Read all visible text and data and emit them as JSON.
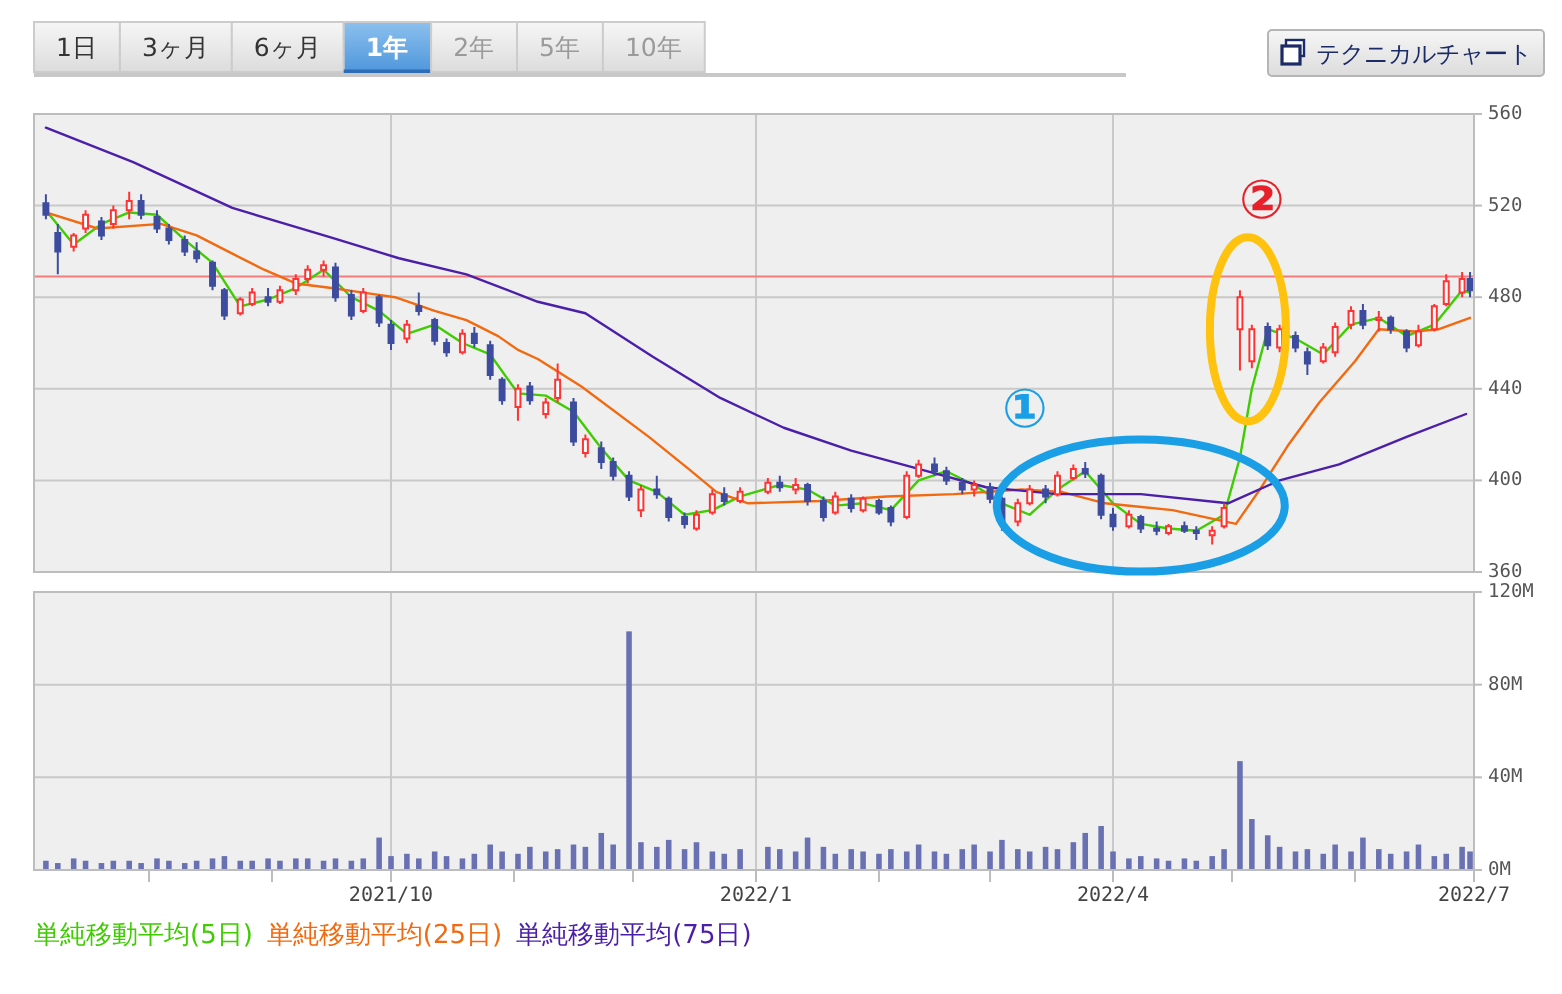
{
  "chart_data": [
    {
      "type": "candlestick",
      "x": [
        "2021-07-06",
        "2021-07-09",
        "2021-07-13",
        "2021-07-16",
        "2021-07-20",
        "2021-07-23",
        "2021-07-27",
        "2021-07-30",
        "2021-08-03",
        "2021-08-06",
        "2021-08-10",
        "2021-08-13",
        "2021-08-17",
        "2021-08-20",
        "2021-08-24",
        "2021-08-27",
        "2021-08-31",
        "2021-09-03",
        "2021-09-07",
        "2021-09-10",
        "2021-09-14",
        "2021-09-17",
        "2021-09-21",
        "2021-09-24",
        "2021-09-28",
        "2021-10-01",
        "2021-10-05",
        "2021-10-08",
        "2021-10-12",
        "2021-10-15",
        "2021-10-19",
        "2021-10-22",
        "2021-10-26",
        "2021-10-29",
        "2021-11-02",
        "2021-11-05",
        "2021-11-09",
        "2021-11-12",
        "2021-11-16",
        "2021-11-19",
        "2021-11-23",
        "2021-11-26",
        "2021-11-30",
        "2021-12-03",
        "2021-12-07",
        "2021-12-10",
        "2021-12-14",
        "2021-12-17",
        "2021-12-21",
        "2021-12-24",
        "2021-12-28",
        "2022-01-04",
        "2022-01-07",
        "2022-01-11",
        "2022-01-14",
        "2022-01-18",
        "2022-01-21",
        "2022-01-25",
        "2022-01-28",
        "2022-02-01",
        "2022-02-04",
        "2022-02-08",
        "2022-02-11",
        "2022-02-15",
        "2022-02-18",
        "2022-02-22",
        "2022-02-25",
        "2022-03-01",
        "2022-03-04",
        "2022-03-08",
        "2022-03-11",
        "2022-03-15",
        "2022-03-18",
        "2022-03-22",
        "2022-03-25",
        "2022-03-29",
        "2022-04-01",
        "2022-04-05",
        "2022-04-08",
        "2022-04-12",
        "2022-04-15",
        "2022-04-19",
        "2022-04-22",
        "2022-04-26",
        "2022-04-29",
        "2022-05-03",
        "2022-05-06",
        "2022-05-10",
        "2022-05-13",
        "2022-05-17",
        "2022-05-20",
        "2022-05-24",
        "2022-05-27",
        "2022-05-31",
        "2022-06-03",
        "2022-06-07",
        "2022-06-10",
        "2022-06-14",
        "2022-06-17",
        "2022-06-21",
        "2022-06-24",
        "2022-06-28",
        "2022-06-30"
      ],
      "ohlc": [
        [
          521,
          525,
          514,
          516
        ],
        [
          508,
          512,
          490,
          500
        ],
        [
          502,
          508,
          500,
          507
        ],
        [
          510,
          518,
          508,
          516
        ],
        [
          513,
          515,
          505,
          507
        ],
        [
          512,
          520,
          510,
          518
        ],
        [
          518,
          526,
          514,
          522
        ],
        [
          522,
          525,
          514,
          516
        ],
        [
          515,
          518,
          508,
          510
        ],
        [
          510,
          512,
          503,
          505
        ],
        [
          505,
          507,
          498,
          500
        ],
        [
          500,
          504,
          495,
          497
        ],
        [
          495,
          496,
          483,
          485
        ],
        [
          483,
          484,
          470,
          472
        ],
        [
          473,
          480,
          472,
          479
        ],
        [
          477,
          484,
          476,
          482
        ],
        [
          480,
          484,
          476,
          478
        ],
        [
          478,
          485,
          477,
          483
        ],
        [
          483,
          490,
          481,
          488
        ],
        [
          488,
          494,
          486,
          492
        ],
        [
          492,
          496,
          489,
          494
        ],
        [
          493,
          495,
          478,
          480
        ],
        [
          481,
          483,
          470,
          472
        ],
        [
          474,
          484,
          473,
          482
        ],
        [
          480,
          481,
          467,
          469
        ],
        [
          468,
          470,
          457,
          460
        ],
        [
          462,
          470,
          460,
          468
        ],
        [
          476,
          482,
          472,
          474
        ],
        [
          470,
          471,
          459,
          461
        ],
        [
          460,
          462,
          454,
          456
        ],
        [
          456,
          466,
          455,
          464
        ],
        [
          464,
          467,
          458,
          460
        ],
        [
          459,
          461,
          444,
          446
        ],
        [
          444,
          445,
          433,
          435
        ],
        [
          432,
          442,
          426,
          440
        ],
        [
          441,
          443,
          433,
          435
        ],
        [
          429,
          436,
          427,
          434
        ],
        [
          436,
          451,
          434,
          444
        ],
        [
          434,
          436,
          415,
          417
        ],
        [
          412,
          420,
          410,
          418
        ],
        [
          414,
          417,
          405,
          408
        ],
        [
          408,
          410,
          400,
          402
        ],
        [
          402,
          404,
          391,
          393
        ],
        [
          387,
          398,
          384,
          396
        ],
        [
          396,
          402,
          392,
          394
        ],
        [
          392,
          393,
          382,
          384
        ],
        [
          384,
          386,
          379,
          381
        ],
        [
          379,
          387,
          378,
          385
        ],
        [
          386,
          396,
          385,
          394
        ],
        [
          394,
          397,
          389,
          391
        ],
        [
          391,
          397,
          390,
          395
        ],
        [
          395,
          401,
          394,
          399
        ],
        [
          399,
          402,
          395,
          397
        ],
        [
          396,
          401,
          394,
          398
        ],
        [
          398,
          399,
          389,
          391
        ],
        [
          391,
          393,
          382,
          384
        ],
        [
          386,
          395,
          385,
          393
        ],
        [
          392,
          394,
          386,
          388
        ],
        [
          387,
          393,
          386,
          392
        ],
        [
          391,
          392,
          385,
          386
        ],
        [
          388,
          389,
          380,
          382
        ],
        [
          384,
          404,
          383,
          402
        ],
        [
          402,
          409,
          401,
          407
        ],
        [
          407,
          410,
          402,
          404
        ],
        [
          404,
          406,
          398,
          400
        ],
        [
          399,
          401,
          394,
          396
        ],
        [
          396,
          400,
          393,
          398
        ],
        [
          397,
          399,
          390,
          392
        ],
        [
          392,
          393,
          378,
          381
        ],
        [
          382,
          392,
          380,
          390
        ],
        [
          390,
          398,
          389,
          396
        ],
        [
          396,
          398,
          390,
          393
        ],
        [
          394,
          404,
          393,
          402
        ],
        [
          401,
          407,
          400,
          405
        ],
        [
          405,
          408,
          401,
          403
        ],
        [
          402,
          403,
          383,
          385
        ],
        [
          385,
          388,
          378,
          380
        ],
        [
          380,
          387,
          379,
          385
        ],
        [
          384,
          385,
          377,
          379
        ],
        [
          379,
          382,
          376,
          378
        ],
        [
          377,
          381,
          376,
          380
        ],
        [
          380,
          382,
          377,
          378
        ],
        [
          378,
          380,
          374,
          377
        ],
        [
          376,
          380,
          372,
          378
        ],
        [
          380,
          390,
          379,
          388
        ],
        [
          466,
          483,
          448,
          480
        ],
        [
          452,
          468,
          449,
          466
        ],
        [
          467,
          469,
          457,
          459
        ],
        [
          458,
          468,
          456,
          466
        ],
        [
          463,
          465,
          456,
          458
        ],
        [
          456,
          458,
          446,
          451
        ],
        [
          452,
          460,
          451,
          458
        ],
        [
          456,
          469,
          454,
          467
        ],
        [
          468,
          476,
          466,
          474
        ],
        [
          474,
          477,
          466,
          468
        ],
        [
          470,
          474,
          465,
          471
        ],
        [
          471,
          472,
          464,
          466
        ],
        [
          465,
          466,
          456,
          458
        ],
        [
          459,
          468,
          458,
          465
        ],
        [
          466,
          477,
          465,
          476
        ],
        [
          477,
          490,
          476,
          487
        ],
        [
          482,
          491,
          480,
          488
        ],
        [
          488,
          491,
          480,
          483
        ]
      ],
      "colors": [
        "#3d4c9e",
        "#3d4c9e",
        "#ff3333",
        "#ff3333",
        "#3d4c9e",
        "#ff3333",
        "#ff3333",
        "#3d4c9e",
        "#3d4c9e",
        "#3d4c9e",
        "#3d4c9e",
        "#3d4c9e",
        "#3d4c9e",
        "#3d4c9e",
        "#ff3333",
        "#ff3333",
        "#3d4c9e",
        "#ff3333",
        "#ff3333",
        "#ff3333",
        "#ff3333",
        "#3d4c9e",
        "#3d4c9e",
        "#ff3333",
        "#3d4c9e",
        "#3d4c9e",
        "#ff3333",
        "#3d4c9e",
        "#3d4c9e",
        "#3d4c9e",
        "#ff3333",
        "#3d4c9e",
        "#3d4c9e",
        "#3d4c9e",
        "#ff3333",
        "#3d4c9e",
        "#ff3333",
        "#ff3333",
        "#3d4c9e",
        "#ff3333",
        "#3d4c9e",
        "#3d4c9e",
        "#3d4c9e",
        "#ff3333",
        "#3d4c9e",
        "#3d4c9e",
        "#3d4c9e",
        "#ff3333",
        "#ff3333",
        "#3d4c9e",
        "#ff3333",
        "#ff3333",
        "#3d4c9e",
        "#ff3333",
        "#3d4c9e",
        "#3d4c9e",
        "#ff3333",
        "#3d4c9e",
        "#ff3333",
        "#3d4c9e",
        "#3d4c9e",
        "#ff3333",
        "#ff3333",
        "#3d4c9e",
        "#3d4c9e",
        "#3d4c9e",
        "#ff3333",
        "#3d4c9e",
        "#3d4c9e",
        "#ff3333",
        "#ff3333",
        "#3d4c9e",
        "#ff3333",
        "#ff3333",
        "#3d4c9e",
        "#3d4c9e",
        "#3d4c9e",
        "#ff3333",
        "#3d4c9e",
        "#3d4c9e",
        "#ff3333",
        "#3d4c9e",
        "#3d4c9e",
        "#ff3333",
        "#ff3333",
        "#ff3333",
        "#ff3333",
        "#3d4c9e",
        "#ff3333",
        "#3d4c9e",
        "#3d4c9e",
        "#ff3333",
        "#ff3333",
        "#ff3333",
        "#3d4c9e",
        "#ff3333",
        "#3d4c9e",
        "#3d4c9e",
        "#ff3333",
        "#ff3333",
        "#ff3333",
        "#ff3333",
        "#3d4c9e"
      ],
      "series": [
        {
          "name": "単純移動平均(5日)",
          "type": "line",
          "color": "#3fcc00",
          "x": [
            "2021-07-06",
            "2021-07-13",
            "2021-07-20",
            "2021-07-27",
            "2021-08-03",
            "2021-08-10",
            "2021-08-17",
            "2021-08-24",
            "2021-08-31",
            "2021-09-07",
            "2021-09-14",
            "2021-09-21",
            "2021-09-28",
            "2021-10-05",
            "2021-10-12",
            "2021-10-19",
            "2021-10-26",
            "2021-11-02",
            "2021-11-09",
            "2021-11-16",
            "2021-11-23",
            "2021-11-30",
            "2021-12-07",
            "2021-12-14",
            "2021-12-21",
            "2021-12-28",
            "2022-01-07",
            "2022-01-14",
            "2022-01-21",
            "2022-01-28",
            "2022-02-04",
            "2022-02-11",
            "2022-02-18",
            "2022-02-25",
            "2022-03-04",
            "2022-03-11",
            "2022-03-18",
            "2022-03-25",
            "2022-04-01",
            "2022-04-08",
            "2022-04-15",
            "2022-04-22",
            "2022-04-29",
            "2022-05-03",
            "2022-05-06",
            "2022-05-10",
            "2022-05-17",
            "2022-05-24",
            "2022-05-31",
            "2022-06-07",
            "2022-06-14",
            "2022-06-21",
            "2022-06-28",
            "2022-06-30"
          ],
          "values": [
            518,
            503,
            512,
            517,
            516,
            505,
            495,
            476,
            479,
            484,
            492,
            480,
            474,
            464,
            468,
            460,
            455,
            438,
            437,
            430,
            414,
            400,
            395,
            385,
            387,
            393,
            398,
            396,
            389,
            390,
            387,
            400,
            404,
            398,
            390,
            385,
            396,
            404,
            390,
            381,
            379,
            378,
            385,
            410,
            440,
            466,
            462,
            455,
            468,
            471,
            463,
            468,
            483,
            482
          ]
        },
        {
          "name": "単純移動平均(25日)",
          "type": "line",
          "color": "#f26a10",
          "x": [
            "2021-07-06",
            "2021-07-19",
            "2021-08-04",
            "2021-08-13",
            "2021-08-22",
            "2021-08-30",
            "2021-09-07",
            "2021-09-16",
            "2021-09-24",
            "2021-10-02",
            "2021-10-12",
            "2021-10-20",
            "2021-10-28",
            "2021-11-02",
            "2021-11-07",
            "2021-11-18",
            "2021-12-05",
            "2021-12-15",
            "2021-12-22",
            "2021-12-30",
            "2022-01-17",
            "2022-02-03",
            "2022-02-20",
            "2022-03-09",
            "2022-03-19",
            "2022-03-30",
            "2022-04-16",
            "2022-05-02",
            "2022-05-08",
            "2022-05-15",
            "2022-05-23",
            "2022-06-01",
            "2022-06-07",
            "2022-06-16",
            "2022-06-22",
            "2022-06-30"
          ],
          "values": [
            517,
            510,
            512,
            507,
            499,
            492,
            486,
            484,
            482,
            480,
            474,
            470,
            463,
            457,
            453,
            441,
            419,
            405,
            395,
            390,
            391,
            393,
            394,
            396,
            395,
            390,
            387,
            381,
            396,
            415,
            434,
            452,
            466,
            465,
            466,
            471
          ]
        },
        {
          "name": "単純移動平均(75日)",
          "type": "line",
          "color": "#4b1fa8",
          "x": [
            "2021-07-06",
            "2021-07-28",
            "2021-08-22",
            "2021-09-16",
            "2021-10-03",
            "2021-10-20",
            "2021-11-07",
            "2021-11-19",
            "2021-12-06",
            "2021-12-23",
            "2022-01-08",
            "2022-01-25",
            "2022-02-11",
            "2022-02-28",
            "2022-03-18",
            "2022-04-08",
            "2022-04-30",
            "2022-05-13",
            "2022-05-28",
            "2022-06-14",
            "2022-06-29"
          ],
          "values": [
            554,
            539,
            519,
            506,
            497,
            490,
            478,
            473,
            454,
            436,
            423,
            413,
            405,
            397,
            394,
            394,
            390,
            400,
            407,
            419,
            429
          ]
        }
      ],
      "ref_lines": [
        {
          "axis": "y",
          "value": 489,
          "color": "#f47c7c"
        }
      ],
      "annotations": [
        "1日",
        "3ヶ月",
        "6ヶ月",
        "1年",
        "2年",
        "5年",
        "10年",
        "テクニカルチャート",
        {
          "text": "①",
          "x": "2022-04-08",
          "y": 389
        },
        {
          "text": "②",
          "x": "2022-05-05",
          "y": 466
        }
      ],
      "xlim": [
        "2021-07-03",
        "2022-07-01"
      ],
      "xticks": [
        {
          "value": "2021-10-01",
          "label": null
        },
        {
          "value": "2022-01-01",
          "label": null
        },
        {
          "value": "2022-04-01",
          "label": null
        },
        {
          "value": "2022-07-01",
          "label": null
        }
      ],
      "ylim": [
        360,
        560
      ],
      "yticks": [
        360,
        400,
        440,
        480,
        520,
        560
      ],
      "grid": true,
      "legend": "bottom",
      "tick_labels": "y"
    },
    {
      "type": "bar",
      "x": [
        "2021-07-06",
        "2021-07-09",
        "2021-07-13",
        "2021-07-16",
        "2021-07-20",
        "2021-07-23",
        "2021-07-27",
        "2021-07-30",
        "2021-08-03",
        "2021-08-06",
        "2021-08-10",
        "2021-08-13",
        "2021-08-17",
        "2021-08-20",
        "2021-08-24",
        "2021-08-27",
        "2021-08-31",
        "2021-09-03",
        "2021-09-07",
        "2021-09-10",
        "2021-09-14",
        "2021-09-17",
        "2021-09-21",
        "2021-09-24",
        "2021-09-28",
        "2021-10-01",
        "2021-10-05",
        "2021-10-08",
        "2021-10-12",
        "2021-10-15",
        "2021-10-19",
        "2021-10-22",
        "2021-10-26",
        "2021-10-29",
        "2021-11-02",
        "2021-11-05",
        "2021-11-09",
        "2021-11-12",
        "2021-11-16",
        "2021-11-19",
        "2021-11-23",
        "2021-11-26",
        "2021-11-30",
        "2021-12-03",
        "2021-12-07",
        "2021-12-10",
        "2021-12-14",
        "2021-12-17",
        "2021-12-21",
        "2021-12-24",
        "2021-12-28",
        "2022-01-04",
        "2022-01-07",
        "2022-01-11",
        "2022-01-14",
        "2022-01-18",
        "2022-01-21",
        "2022-01-25",
        "2022-01-28",
        "2022-02-01",
        "2022-02-04",
        "2022-02-08",
        "2022-02-11",
        "2022-02-15",
        "2022-02-18",
        "2022-02-22",
        "2022-02-25",
        "2022-03-01",
        "2022-03-04",
        "2022-03-08",
        "2022-03-11",
        "2022-03-15",
        "2022-03-18",
        "2022-03-22",
        "2022-03-25",
        "2022-03-29",
        "2022-04-01",
        "2022-04-05",
        "2022-04-08",
        "2022-04-12",
        "2022-04-15",
        "2022-04-19",
        "2022-04-22",
        "2022-04-26",
        "2022-04-29",
        "2022-05-03",
        "2022-05-06",
        "2022-05-10",
        "2022-05-13",
        "2022-05-17",
        "2022-05-20",
        "2022-05-24",
        "2022-05-27",
        "2022-05-31",
        "2022-06-03",
        "2022-06-07",
        "2022-06-10",
        "2022-06-14",
        "2022-06-17",
        "2022-06-21",
        "2022-06-24",
        "2022-06-28",
        "2022-06-30"
      ],
      "values": [
        4,
        3,
        5,
        4,
        3,
        4,
        4,
        3,
        5,
        4,
        3,
        4,
        5,
        6,
        4,
        4,
        5,
        4,
        5,
        5,
        4,
        5,
        4,
        5,
        14,
        6,
        7,
        5,
        8,
        6,
        5,
        7,
        11,
        8,
        7,
        10,
        8,
        9,
        11,
        10,
        16,
        11,
        103,
        12,
        10,
        13,
        9,
        12,
        8,
        7,
        9,
        10,
        9,
        8,
        14,
        10,
        7,
        9,
        8,
        7,
        9,
        8,
        11,
        8,
        7,
        9,
        11,
        8,
        13,
        9,
        8,
        10,
        9,
        12,
        16,
        19,
        8,
        5,
        6,
        5,
        4,
        5,
        4,
        6,
        9,
        47,
        22,
        15,
        10,
        8,
        9,
        7,
        11,
        8,
        14,
        9,
        7,
        8,
        11,
        6,
        7,
        10,
        8
      ],
      "color": "#6a71b3",
      "xlim": [
        "2021-07-03",
        "2022-07-01"
      ],
      "xticks": [
        {
          "value": "2021-08-01",
          "label": null
        },
        {
          "value": "2021-09-01",
          "label": null
        },
        {
          "value": "2021-10-01",
          "label": "2021/10"
        },
        {
          "value": "2021-11-01",
          "label": null
        },
        {
          "value": "2021-12-01",
          "label": null
        },
        {
          "value": "2022-01-01",
          "label": "2022/1"
        },
        {
          "value": "2022-02-01",
          "label": null
        },
        {
          "value": "2022-03-01",
          "label": null
        },
        {
          "value": "2022-04-01",
          "label": "2022/4"
        },
        {
          "value": "2022-05-01",
          "label": null
        },
        {
          "value": "2022-06-01",
          "label": null
        },
        {
          "value": "2022-07-01",
          "label": "2022/7"
        }
      ],
      "ylim": [
        0,
        120
      ],
      "yticks": [
        {
          "value": 0,
          "label": "0M"
        },
        {
          "value": 40,
          "label": "40M"
        },
        {
          "value": 80,
          "label": "80M"
        },
        {
          "value": 120,
          "label": "120M"
        }
      ],
      "grid": true
    }
  ]
}
